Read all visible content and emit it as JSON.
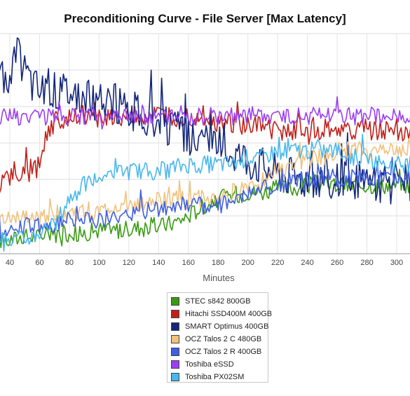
{
  "chart_data": {
    "type": "line",
    "title": "Preconditioning Curve - File Server [Max Latency]",
    "xlabel": "Minutes",
    "ylabel": "",
    "x_ticks": [
      "40",
      "60",
      "80",
      "100",
      "120",
      "140",
      "160",
      "180",
      "200",
      "220",
      "240",
      "260",
      "280",
      "300"
    ],
    "xlim": [
      33,
      310
    ],
    "grid": "horizontal and vertical",
    "legend_position": "bottom-center",
    "series": [
      {
        "name": "STEC s842 800GB",
        "color": "#3a9a14",
        "values": [
          [
            33,
            2
          ],
          [
            40,
            2
          ],
          [
            50,
            2.5
          ],
          [
            60,
            2.5
          ],
          [
            70,
            3
          ],
          [
            80,
            3
          ],
          [
            90,
            3
          ],
          [
            100,
            3.5
          ],
          [
            110,
            3.5
          ],
          [
            120,
            3.5
          ],
          [
            130,
            4
          ],
          [
            140,
            4
          ],
          [
            150,
            4.5
          ],
          [
            160,
            5.5
          ],
          [
            170,
            7
          ],
          [
            180,
            8
          ],
          [
            190,
            8.5
          ],
          [
            200,
            9
          ],
          [
            210,
            9
          ],
          [
            220,
            9.5
          ],
          [
            230,
            9.5
          ],
          [
            240,
            10
          ],
          [
            250,
            10
          ],
          [
            260,
            10
          ],
          [
            270,
            10
          ],
          [
            280,
            10
          ],
          [
            290,
            10
          ],
          [
            300,
            10
          ],
          [
            310,
            10
          ]
        ]
      },
      {
        "name": "Hitachi SSD400M 400GB",
        "color": "#c0201a",
        "values": [
          [
            33,
            10
          ],
          [
            40,
            11
          ],
          [
            45,
            11
          ],
          [
            50,
            12
          ],
          [
            55,
            12
          ],
          [
            60,
            13
          ],
          [
            65,
            18
          ],
          [
            70,
            19
          ],
          [
            80,
            20
          ],
          [
            90,
            20
          ],
          [
            100,
            20
          ],
          [
            110,
            20
          ],
          [
            120,
            20
          ],
          [
            130,
            20
          ],
          [
            140,
            20
          ],
          [
            150,
            20
          ],
          [
            160,
            20
          ],
          [
            170,
            20
          ],
          [
            180,
            19
          ],
          [
            190,
            19
          ],
          [
            200,
            18.5
          ],
          [
            210,
            18.5
          ],
          [
            220,
            18
          ],
          [
            230,
            18
          ],
          [
            240,
            18
          ],
          [
            250,
            18
          ],
          [
            260,
            18
          ],
          [
            270,
            18
          ],
          [
            280,
            18
          ],
          [
            290,
            18
          ],
          [
            300,
            18
          ],
          [
            310,
            18
          ]
        ]
      },
      {
        "name": "SMART Optimus 400GB",
        "color": "#13267a",
        "values": [
          [
            33,
            26
          ],
          [
            40,
            26
          ],
          [
            45,
            29
          ],
          [
            50,
            27
          ],
          [
            55,
            25
          ],
          [
            60,
            24
          ],
          [
            70,
            24
          ],
          [
            80,
            24
          ],
          [
            90,
            23
          ],
          [
            100,
            22
          ],
          [
            110,
            22
          ],
          [
            120,
            21
          ],
          [
            130,
            20
          ],
          [
            140,
            19
          ],
          [
            150,
            18
          ],
          [
            160,
            17
          ],
          [
            170,
            16.5
          ],
          [
            180,
            16
          ],
          [
            190,
            15
          ],
          [
            200,
            14
          ],
          [
            210,
            13
          ],
          [
            220,
            12
          ],
          [
            230,
            11.5
          ],
          [
            240,
            11
          ],
          [
            250,
            11
          ],
          [
            260,
            10.5
          ],
          [
            270,
            10.5
          ],
          [
            280,
            10.5
          ],
          [
            290,
            10
          ],
          [
            300,
            10
          ],
          [
            310,
            10
          ]
        ]
      },
      {
        "name": "OCZ Talos 2 C 480GB",
        "color": "#f0c27e",
        "values": [
          [
            33,
            5
          ],
          [
            40,
            5
          ],
          [
            50,
            5
          ],
          [
            60,
            5
          ],
          [
            70,
            6
          ],
          [
            80,
            6
          ],
          [
            90,
            6
          ],
          [
            100,
            6
          ],
          [
            110,
            7
          ],
          [
            120,
            7
          ],
          [
            130,
            7
          ],
          [
            140,
            8
          ],
          [
            150,
            8
          ],
          [
            160,
            8
          ],
          [
            170,
            8
          ],
          [
            180,
            8
          ],
          [
            190,
            9
          ],
          [
            200,
            10
          ],
          [
            210,
            11
          ],
          [
            220,
            12
          ],
          [
            230,
            13
          ],
          [
            240,
            14
          ],
          [
            250,
            14
          ],
          [
            260,
            15
          ],
          [
            270,
            15
          ],
          [
            280,
            15
          ],
          [
            290,
            15
          ],
          [
            300,
            15
          ],
          [
            310,
            15
          ]
        ]
      },
      {
        "name": "OCZ Talos 2 R 400GB",
        "color": "#3f5fe0",
        "values": [
          [
            33,
            3
          ],
          [
            40,
            4
          ],
          [
            50,
            4
          ],
          [
            60,
            4
          ],
          [
            70,
            4.5
          ],
          [
            80,
            5
          ],
          [
            90,
            5
          ],
          [
            100,
            5
          ],
          [
            110,
            5.5
          ],
          [
            120,
            6
          ],
          [
            130,
            6
          ],
          [
            140,
            6.5
          ],
          [
            150,
            7
          ],
          [
            160,
            7
          ],
          [
            170,
            7
          ],
          [
            180,
            7
          ],
          [
            190,
            8
          ],
          [
            200,
            9
          ],
          [
            210,
            9.5
          ],
          [
            220,
            10
          ],
          [
            230,
            10.5
          ],
          [
            240,
            11
          ],
          [
            250,
            11
          ],
          [
            260,
            11
          ],
          [
            270,
            11
          ],
          [
            280,
            11
          ],
          [
            290,
            11
          ],
          [
            300,
            11
          ],
          [
            310,
            11
          ]
        ]
      },
      {
        "name": "Toshiba eSSD",
        "color": "#9b3ff0",
        "values": [
          [
            33,
            20
          ],
          [
            40,
            20
          ],
          [
            50,
            20
          ],
          [
            60,
            20
          ],
          [
            70,
            20
          ],
          [
            80,
            20
          ],
          [
            90,
            20
          ],
          [
            100,
            20
          ],
          [
            110,
            20
          ],
          [
            120,
            20
          ],
          [
            130,
            20
          ],
          [
            140,
            20
          ],
          [
            150,
            20
          ],
          [
            160,
            20
          ],
          [
            170,
            20
          ],
          [
            180,
            20
          ],
          [
            190,
            20
          ],
          [
            200,
            20
          ],
          [
            210,
            20
          ],
          [
            220,
            20
          ],
          [
            230,
            20
          ],
          [
            240,
            20
          ],
          [
            250,
            20
          ],
          [
            260,
            20
          ],
          [
            270,
            20
          ],
          [
            280,
            20
          ],
          [
            290,
            20
          ],
          [
            300,
            20
          ],
          [
            310,
            20
          ]
        ]
      },
      {
        "name": "Toshiba PX02SM",
        "color": "#48b8ec",
        "values": [
          [
            33,
            2
          ],
          [
            40,
            2
          ],
          [
            50,
            2
          ],
          [
            60,
            3
          ],
          [
            70,
            4
          ],
          [
            80,
            8
          ],
          [
            90,
            10
          ],
          [
            100,
            11
          ],
          [
            110,
            12
          ],
          [
            120,
            12
          ],
          [
            130,
            12
          ],
          [
            140,
            12
          ],
          [
            150,
            12.5
          ],
          [
            160,
            13
          ],
          [
            170,
            13
          ],
          [
            180,
            13
          ],
          [
            190,
            13
          ],
          [
            200,
            14
          ],
          [
            210,
            14
          ],
          [
            220,
            15
          ],
          [
            230,
            15
          ],
          [
            240,
            15
          ],
          [
            250,
            15
          ],
          [
            260,
            15
          ],
          [
            270,
            14
          ],
          [
            280,
            14
          ],
          [
            290,
            13
          ],
          [
            300,
            13
          ],
          [
            310,
            13
          ]
        ]
      }
    ]
  }
}
